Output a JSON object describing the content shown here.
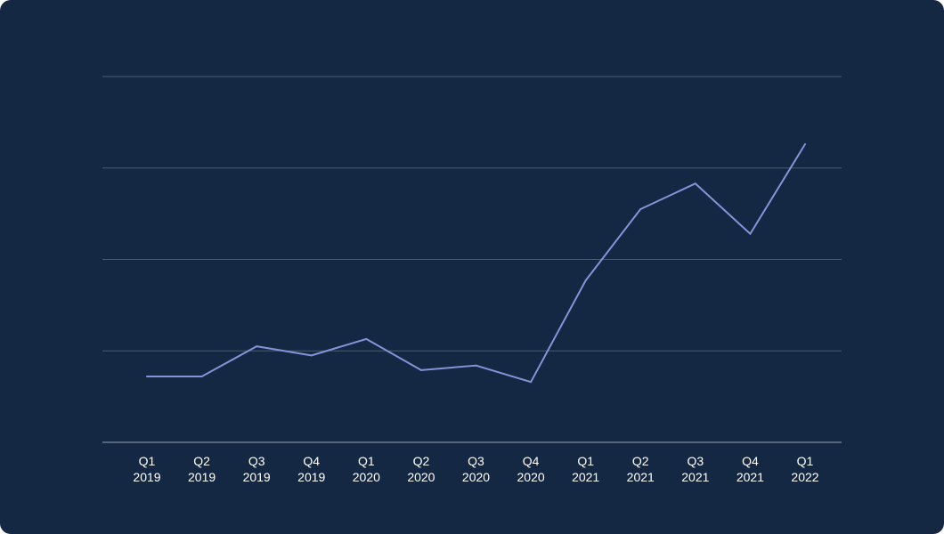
{
  "chart_data": {
    "type": "line",
    "title": "",
    "xlabel": "",
    "ylabel": "",
    "categories": [
      [
        "Q1",
        "2019"
      ],
      [
        "Q2",
        "2019"
      ],
      [
        "Q3",
        "2019"
      ],
      [
        "Q4",
        "2019"
      ],
      [
        "Q1",
        "2020"
      ],
      [
        "Q2",
        "2020"
      ],
      [
        "Q3",
        "2020"
      ],
      [
        "Q4",
        "2020"
      ],
      [
        "Q1",
        "2021"
      ],
      [
        "Q2",
        "2021"
      ],
      [
        "Q3",
        "2021"
      ],
      [
        "Q4",
        "2021"
      ],
      [
        "Q1",
        "2022"
      ]
    ],
    "series": [
      {
        "values": [
          0.72,
          0.72,
          1.05,
          0.95,
          1.13,
          0.79,
          0.84,
          0.66,
          1.77,
          2.55,
          2.83,
          2.28,
          3.26
        ]
      }
    ],
    "ylim": [
      0,
      4
    ],
    "gridlines": [
      0,
      1,
      2,
      3,
      4
    ],
    "grid": true,
    "y_tick_labels_shown": false,
    "legend": "none",
    "colors": {
      "background": "#142843",
      "line": "#8792d8",
      "grid": "#4a5a73",
      "baseline": "#6b7a90",
      "text": "#ffffff"
    }
  }
}
